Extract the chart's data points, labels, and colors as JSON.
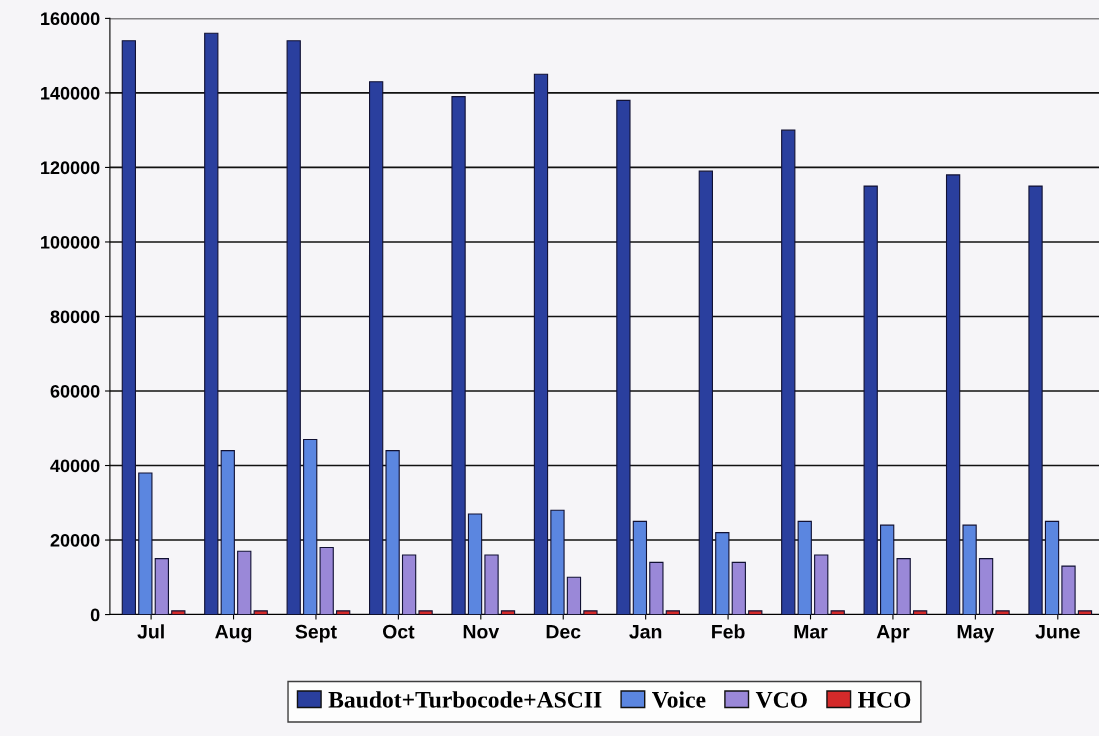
{
  "chart_data": {
    "type": "bar",
    "categories": [
      "Jul",
      "Aug",
      "Sept",
      "Oct",
      "Nov",
      "Dec",
      "Jan",
      "Feb",
      "Mar",
      "Apr",
      "May",
      "June"
    ],
    "series": [
      {
        "name": "Baudot+Turbocode+ASCII",
        "color": "#2a3f9e",
        "values": [
          154000,
          156000,
          154000,
          143000,
          139000,
          145000,
          138000,
          119000,
          130000,
          115000,
          118000,
          115000
        ]
      },
      {
        "name": "Voice",
        "color": "#5b86e0",
        "values": [
          38000,
          44000,
          47000,
          44000,
          27000,
          28000,
          25000,
          22000,
          25000,
          24000,
          24000,
          25000
        ]
      },
      {
        "name": "VCO",
        "color": "#9a88d8",
        "values": [
          15000,
          17000,
          18000,
          16000,
          16000,
          10000,
          14000,
          14000,
          16000,
          15000,
          15000,
          13000
        ]
      },
      {
        "name": "HCO",
        "color": "#d42a2a",
        "values": [
          1000,
          1000,
          1000,
          1000,
          1000,
          1000,
          1000,
          1000,
          1000,
          1000,
          1000,
          1000
        ]
      }
    ],
    "ylim": [
      0,
      160000
    ],
    "yticks": [
      0,
      20000,
      40000,
      60000,
      80000,
      100000,
      120000,
      140000,
      160000
    ],
    "grid": "y",
    "legend": "bottom"
  }
}
